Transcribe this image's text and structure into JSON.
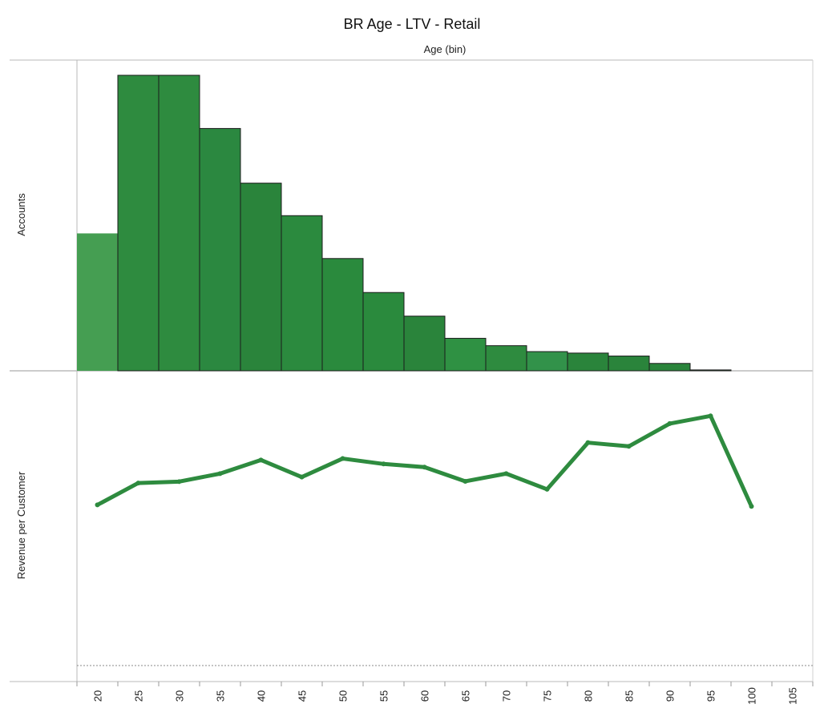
{
  "chart_data": [
    {
      "type": "bar",
      "title": "BR Age - LTV - Retail",
      "xlabel": "Age (bin)",
      "ylabel": "Accounts",
      "categories": [
        "20",
        "25",
        "30",
        "35",
        "40",
        "45",
        "50",
        "55",
        "60",
        "65",
        "70",
        "75",
        "80",
        "85",
        "90",
        "95"
      ],
      "values": [
        46.5,
        100,
        100,
        82,
        63.5,
        52.5,
        38,
        26.5,
        18.5,
        11,
        8.5,
        6.5,
        6,
        5,
        2.5,
        0.3
      ],
      "ylim": [
        0,
        100
      ],
      "bar_colors": [
        "#459e52",
        "#2e8b3f",
        "#2e8b3f",
        "#2b8840",
        "#2a843b",
        "#2b8a3e",
        "#2a8a3d",
        "#2a8a3d",
        "#2a843b",
        "#2f9143",
        "#2e8b3f",
        "#32924a",
        "#2a843b",
        "#2a843b",
        "#2a843b",
        "#2a843b"
      ],
      "grid": false
    },
    {
      "type": "line",
      "ylabel": "Revenue per Customer",
      "x": [
        20,
        25,
        30,
        35,
        40,
        45,
        50,
        55,
        60,
        65,
        70,
        75,
        80,
        85,
        90,
        95,
        100
      ],
      "values": [
        56.5,
        64.2,
        64.7,
        67.5,
        72.3,
        66.3,
        72.8,
        70.9,
        69.8,
        64.8,
        67.5,
        62.0,
        78.4,
        77.1,
        85.1,
        87.8,
        56.0
      ],
      "ylim": [
        0,
        100
      ],
      "color": "#2e8b3f",
      "grid": false
    }
  ],
  "x_axis": {
    "ticks": [
      "20",
      "25",
      "30",
      "35",
      "40",
      "45",
      "50",
      "55",
      "60",
      "65",
      "70",
      "75",
      "80",
      "85",
      "90",
      "95",
      "100",
      "105"
    ]
  }
}
